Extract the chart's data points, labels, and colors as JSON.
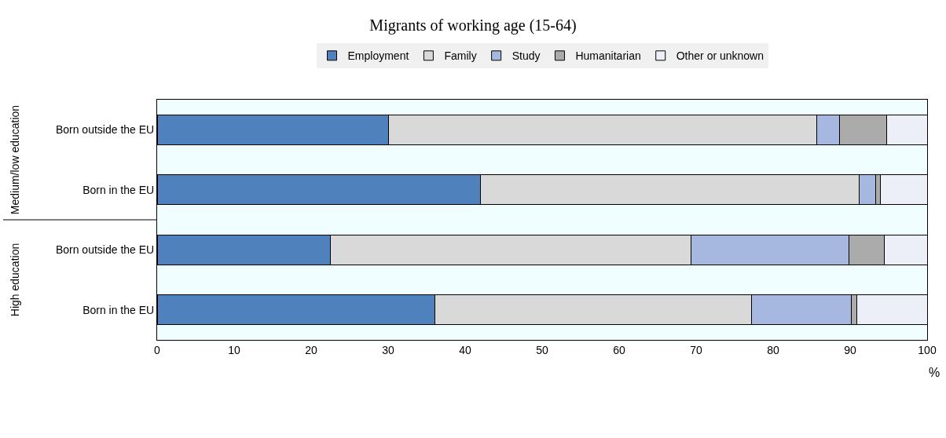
{
  "chart_data": {
    "type": "bar",
    "orientation": "horizontal",
    "stacked": true,
    "title": "Migrants of working age (15-64)",
    "xlabel": "%",
    "categories": [
      "Born outside the EU",
      "Born in the EU",
      "Born outside the EU",
      "Born in the EU"
    ],
    "annotations": [
      "Medium/low education",
      "High education"
    ],
    "series": [
      {
        "name": "Employment",
        "color": "#4f81bd",
        "values": [
          30,
          42,
          22.5,
          36.1
        ]
      },
      {
        "name": "Family",
        "color": "#d9d9d9",
        "values": [
          55.7,
          49.2,
          46.8,
          41.1
        ]
      },
      {
        "name": "Study",
        "color": "#a6b7e0",
        "values": [
          2.9,
          2.1,
          20.5,
          13.0
        ]
      },
      {
        "name": "Humanitarian",
        "color": "#ababab",
        "values": [
          6.1,
          0.6,
          4.6,
          0.7
        ]
      },
      {
        "name": "Other or unknown",
        "color": "#eceff8",
        "values": [
          5.3,
          6.1,
          5.6,
          9.1
        ]
      }
    ],
    "xlim": [
      0,
      100
    ],
    "xticks": [
      0,
      10,
      20,
      30,
      40,
      50,
      60,
      70,
      80,
      90,
      100
    ],
    "grid": false,
    "legend": "top"
  }
}
